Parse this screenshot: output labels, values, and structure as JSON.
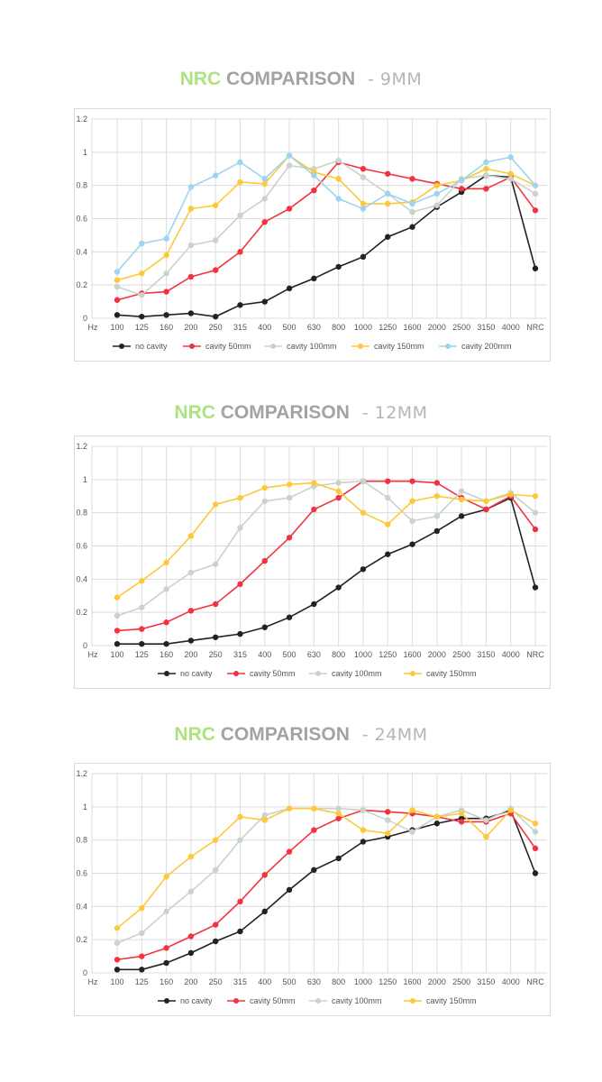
{
  "chart_data": [
    {
      "type": "line",
      "title": {
        "nrc": "NRC",
        "comparison": "COMPARISON",
        "suffix": "- 9MM"
      },
      "x_label": "Hz",
      "categories": [
        "100",
        "125",
        "160",
        "200",
        "250",
        "315",
        "400",
        "500",
        "630",
        "800",
        "1000",
        "1250",
        "1600",
        "2000",
        "2500",
        "3150",
        "4000",
        "NRC"
      ],
      "ylim": [
        0,
        1.2
      ],
      "yticks": [
        "0",
        "0.2",
        "0.4",
        "0.6",
        "0.8",
        "1",
        "1.2"
      ],
      "grid": true,
      "legend_position": "bottom",
      "series": [
        {
          "name": "no cavity",
          "color": "#222222",
          "values": [
            0.02,
            0.01,
            0.02,
            0.03,
            0.01,
            0.08,
            0.1,
            0.18,
            0.24,
            0.31,
            0.37,
            0.49,
            0.55,
            0.67,
            0.76,
            0.86,
            0.85,
            0.3
          ]
        },
        {
          "name": "cavity 50mm",
          "color": "#f2333f",
          "values": [
            0.11,
            0.15,
            0.16,
            0.25,
            0.29,
            0.4,
            0.58,
            0.66,
            0.77,
            0.94,
            0.9,
            0.87,
            0.84,
            0.81,
            0.78,
            0.78,
            0.85,
            0.65
          ]
        },
        {
          "name": "cavity 100mm",
          "color": "#c7d3cb",
          "values": [
            0.19,
            0.14,
            0.27,
            0.44,
            0.47,
            0.62,
            0.72,
            0.92,
            0.9,
            0.95,
            0.85,
            0.75,
            0.64,
            0.68,
            0.84,
            0.86,
            0.84,
            0.75
          ]
        },
        {
          "name": "cavity 150mm",
          "color": "#fcc93a",
          "values": [
            0.23,
            0.27,
            0.38,
            0.66,
            0.68,
            0.82,
            0.81,
            0.98,
            0.88,
            0.84,
            0.69,
            0.69,
            0.7,
            0.8,
            0.83,
            0.9,
            0.87,
            0.8
          ]
        },
        {
          "name": "cavity 200mm",
          "color": "#9dd4ef",
          "values": [
            0.28,
            0.45,
            0.48,
            0.79,
            0.86,
            0.94,
            0.84,
            0.98,
            0.86,
            0.72,
            0.66,
            0.75,
            0.69,
            0.75,
            0.83,
            0.94,
            0.97,
            0.8
          ]
        }
      ]
    },
    {
      "type": "line",
      "title": {
        "nrc": "NRC",
        "comparison": "COMPARISON",
        "suffix": "- 12MM"
      },
      "x_label": "Hz",
      "categories": [
        "100",
        "125",
        "160",
        "200",
        "250",
        "315",
        "400",
        "500",
        "630",
        "800",
        "1000",
        "1250",
        "1600",
        "2000",
        "2500",
        "3150",
        "4000",
        "NRC"
      ],
      "ylim": [
        0,
        1.2
      ],
      "yticks": [
        "0",
        "0.2",
        "0.4",
        "0.6",
        "0.8",
        "1",
        "1.2"
      ],
      "grid": true,
      "legend_position": "bottom",
      "series": [
        {
          "name": "no cavity",
          "color": "#222222",
          "values": [
            0.01,
            0.01,
            0.01,
            0.03,
            0.05,
            0.07,
            0.11,
            0.17,
            0.25,
            0.35,
            0.46,
            0.55,
            0.61,
            0.69,
            0.78,
            0.82,
            0.89,
            0.35
          ]
        },
        {
          "name": "cavity 50mm",
          "color": "#f2333f",
          "values": [
            0.09,
            0.1,
            0.14,
            0.21,
            0.25,
            0.37,
            0.51,
            0.65,
            0.82,
            0.89,
            0.99,
            0.99,
            0.99,
            0.98,
            0.89,
            0.82,
            0.9,
            0.7
          ]
        },
        {
          "name": "cavity 100mm",
          "color": "#c7d3cb",
          "values": [
            0.18,
            0.23,
            0.34,
            0.44,
            0.49,
            0.71,
            0.87,
            0.89,
            0.96,
            0.98,
            0.99,
            0.89,
            0.75,
            0.78,
            0.93,
            0.87,
            0.92,
            0.8
          ]
        },
        {
          "name": "cavity 150mm",
          "color": "#fcc93a",
          "values": [
            0.29,
            0.39,
            0.5,
            0.66,
            0.85,
            0.89,
            0.95,
            0.97,
            0.98,
            0.93,
            0.8,
            0.73,
            0.87,
            0.9,
            0.88,
            0.87,
            0.91,
            0.9
          ]
        }
      ]
    },
    {
      "type": "line",
      "title": {
        "nrc": "NRC",
        "comparison": "COMPARISON",
        "suffix": "- 24MM"
      },
      "x_label": "Hz",
      "categories": [
        "100",
        "125",
        "160",
        "200",
        "250",
        "315",
        "400",
        "500",
        "630",
        "800",
        "1000",
        "1250",
        "1600",
        "2000",
        "2500",
        "3150",
        "4000",
        "NRC"
      ],
      "ylim": [
        0,
        1.2
      ],
      "yticks": [
        "0",
        "0.2",
        "0.4",
        "0.6",
        "0.8",
        "1",
        "1.2"
      ],
      "grid": true,
      "legend_position": "bottom",
      "series": [
        {
          "name": "no cavity",
          "color": "#222222",
          "values": [
            0.02,
            0.02,
            0.06,
            0.12,
            0.19,
            0.25,
            0.37,
            0.5,
            0.62,
            0.69,
            0.79,
            0.82,
            0.86,
            0.9,
            0.93,
            0.93,
            0.98,
            0.6
          ]
        },
        {
          "name": "cavity 50mm",
          "color": "#f2333f",
          "values": [
            0.08,
            0.1,
            0.15,
            0.22,
            0.29,
            0.43,
            0.59,
            0.73,
            0.86,
            0.93,
            0.98,
            0.97,
            0.96,
            0.94,
            0.91,
            0.91,
            0.96,
            0.75
          ]
        },
        {
          "name": "cavity 100mm",
          "color": "#c7d3cb",
          "values": [
            0.18,
            0.24,
            0.37,
            0.49,
            0.62,
            0.8,
            0.95,
            0.99,
            0.99,
            0.99,
            0.98,
            0.92,
            0.85,
            0.94,
            0.98,
            0.92,
            0.99,
            0.85
          ]
        },
        {
          "name": "cavity 150mm",
          "color": "#fcc93a",
          "values": [
            0.27,
            0.39,
            0.58,
            0.7,
            0.8,
            0.94,
            0.92,
            0.99,
            0.99,
            0.96,
            0.86,
            0.84,
            0.98,
            0.94,
            0.96,
            0.82,
            0.98,
            0.9
          ]
        }
      ]
    }
  ]
}
